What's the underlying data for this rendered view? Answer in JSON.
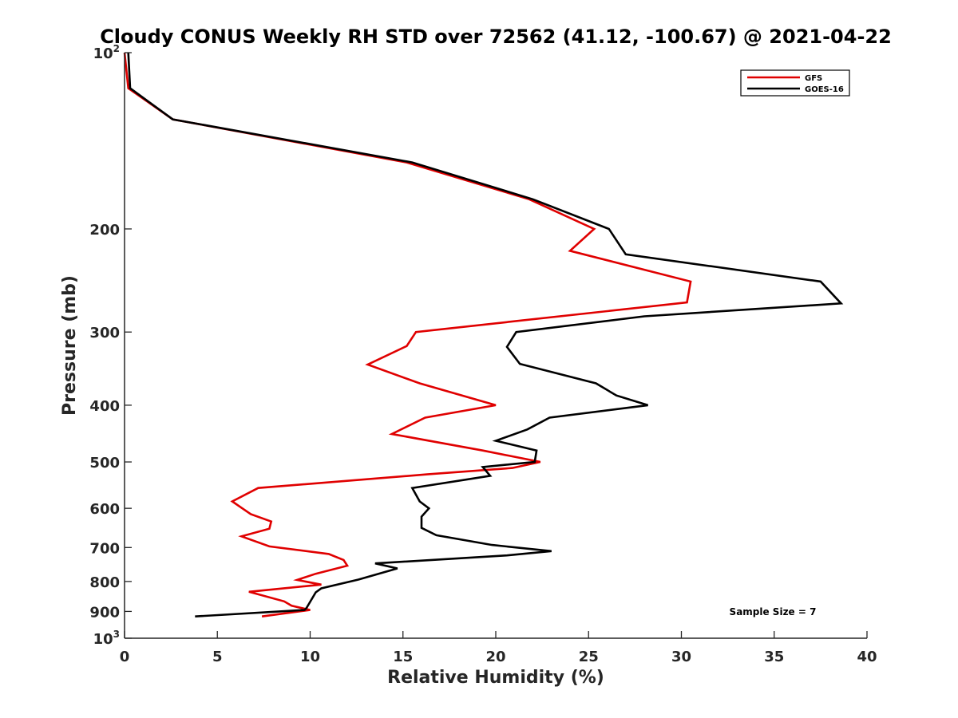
{
  "chart_data": {
    "type": "line",
    "title": "Cloudy CONUS Weekly RH STD over 72562 (41.12, -100.67) @ 2021-04-22",
    "xlabel": "Relative Humidity (%)",
    "ylabel": "Pressure (mb)",
    "xlim": [
      0,
      40
    ],
    "ylim": [
      100,
      1000
    ],
    "y_scale": "log",
    "y_reversed": true,
    "grid": false,
    "legend_position": "top-right",
    "x_ticks": [
      0,
      5,
      10,
      15,
      20,
      25,
      30,
      35,
      40
    ],
    "x_tick_labels": [
      "0",
      "5",
      "10",
      "15",
      "20",
      "25",
      "30",
      "35",
      "40"
    ],
    "y_ticks": [
      100,
      200,
      300,
      400,
      500,
      600,
      700,
      800,
      900,
      1000
    ],
    "y_tick_labels": [
      {
        "base": "10",
        "sup": "2"
      },
      {
        "base": "200",
        "sup": ""
      },
      {
        "base": "300",
        "sup": ""
      },
      {
        "base": "400",
        "sup": ""
      },
      {
        "base": "500",
        "sup": ""
      },
      {
        "base": "600",
        "sup": ""
      },
      {
        "base": "700",
        "sup": ""
      },
      {
        "base": "800",
        "sup": ""
      },
      {
        "base": "900",
        "sup": ""
      },
      {
        "base": "10",
        "sup": "3"
      }
    ],
    "annotation": "Sample Size = 7",
    "series": [
      {
        "name": "GFS",
        "color": "#e00000",
        "points": [
          [
            0.0,
            100
          ],
          [
            0.2,
            115
          ],
          [
            2.6,
            130
          ],
          [
            15.2,
            154
          ],
          [
            21.8,
            178
          ],
          [
            25.3,
            200
          ],
          [
            24.0,
            218
          ],
          [
            30.5,
            246
          ],
          [
            30.3,
            267
          ],
          [
            15.7,
            300
          ],
          [
            15.2,
            317
          ],
          [
            13.1,
            341
          ],
          [
            15.9,
            367
          ],
          [
            20.0,
            400
          ],
          [
            16.2,
            420
          ],
          [
            14.4,
            448
          ],
          [
            19.3,
            478
          ],
          [
            22.4,
            500
          ],
          [
            20.9,
            512
          ],
          [
            16.3,
            525
          ],
          [
            7.2,
            554
          ],
          [
            5.8,
            584
          ],
          [
            6.8,
            614
          ],
          [
            7.9,
            632
          ],
          [
            7.8,
            650
          ],
          [
            6.3,
            670
          ],
          [
            7.8,
            697
          ],
          [
            11.0,
            718
          ],
          [
            11.8,
            735
          ],
          [
            12.0,
            752
          ],
          [
            10.3,
            776
          ],
          [
            9.3,
            795
          ],
          [
            10.6,
            810
          ],
          [
            6.7,
            833
          ],
          [
            8.6,
            865
          ],
          [
            9.0,
            880
          ],
          [
            10.0,
            895
          ],
          [
            7.4,
            918
          ]
        ]
      },
      {
        "name": "GOES-16",
        "color": "#000000",
        "points": [
          [
            0.2,
            100
          ],
          [
            0.3,
            115
          ],
          [
            2.6,
            130
          ],
          [
            15.5,
            154
          ],
          [
            22.0,
            178
          ],
          [
            26.1,
            200
          ],
          [
            27.0,
            221
          ],
          [
            37.5,
            246
          ],
          [
            38.6,
            268
          ],
          [
            28.0,
            282
          ],
          [
            21.1,
            300
          ],
          [
            20.6,
            318
          ],
          [
            21.3,
            340
          ],
          [
            25.4,
            367
          ],
          [
            26.5,
            385
          ],
          [
            28.2,
            400
          ],
          [
            22.9,
            420
          ],
          [
            21.7,
            440
          ],
          [
            20.0,
            460
          ],
          [
            22.2,
            478
          ],
          [
            22.1,
            500
          ],
          [
            19.3,
            510
          ],
          [
            19.7,
            528
          ],
          [
            15.5,
            554
          ],
          [
            15.9,
            584
          ],
          [
            16.4,
            600
          ],
          [
            16.0,
            620
          ],
          [
            16.0,
            648
          ],
          [
            16.8,
            667
          ],
          [
            19.8,
            693
          ],
          [
            23.0,
            710
          ],
          [
            20.6,
            722
          ],
          [
            13.5,
            745
          ],
          [
            14.7,
            760
          ],
          [
            12.6,
            794
          ],
          [
            10.6,
            822
          ],
          [
            10.3,
            835
          ],
          [
            9.8,
            888
          ],
          [
            9.7,
            895
          ],
          [
            3.8,
            918
          ]
        ]
      }
    ]
  }
}
